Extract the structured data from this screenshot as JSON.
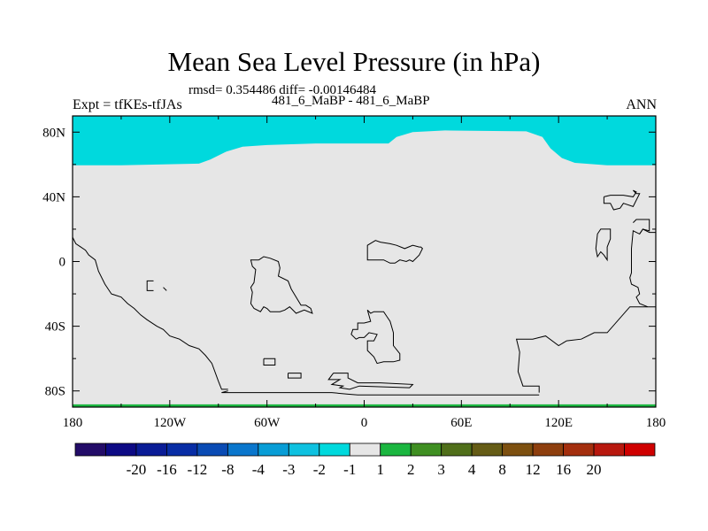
{
  "chart_data": {
    "type": "heatmap",
    "title": "Mean Sea Level Pressure (in hPa)",
    "stats": "rmsd= 0.354486 diff= -0.00146484",
    "subtitle": "481_6_MaBP - 481_6_MaBP",
    "left_label": "Expt = tfKEs-tfJAs",
    "right_label": "ANN",
    "xlim": [
      -180,
      180
    ],
    "ylim": [
      -90,
      90
    ],
    "x_ticks": [
      {
        "value": -180,
        "label": "180"
      },
      {
        "value": -120,
        "label": "120W"
      },
      {
        "value": -60,
        "label": "60W"
      },
      {
        "value": 0,
        "label": "0"
      },
      {
        "value": 60,
        "label": "60E"
      },
      {
        "value": 120,
        "label": "120E"
      },
      {
        "value": 180,
        "label": "180"
      }
    ],
    "y_ticks": [
      {
        "value": 80,
        "label": "80N"
      },
      {
        "value": 40,
        "label": "40N"
      },
      {
        "value": 0,
        "label": "0"
      },
      {
        "value": -40,
        "label": "40S"
      },
      {
        "value": -80,
        "label": "80S"
      }
    ],
    "background_level": "-1 to 1",
    "regions": [
      {
        "level": "-2 to -1",
        "color": "#00d9dd",
        "description": "northern high latitudes"
      },
      {
        "level": "1 to 2",
        "color": "#1bb640",
        "description": "southern edge strip"
      }
    ],
    "colorbar": {
      "colors": [
        "#230c68",
        "#0d0a84",
        "#0a1c96",
        "#082da5",
        "#0a4bb4",
        "#0a76cc",
        "#089dd6",
        "#0ec1e0",
        "#00d9dd",
        "#e6e6e6",
        "#1bb640",
        "#3f8f22",
        "#506f1a",
        "#655c16",
        "#7d5010",
        "#8e3f0e",
        "#a42f0e",
        "#b8180e",
        "#cf0000"
      ],
      "labels": [
        "-20",
        "-16",
        "-12",
        "-8",
        "-4",
        "-3",
        "-2",
        "-1",
        "1",
        "2",
        "3",
        "4",
        "8",
        "12",
        "16",
        "20"
      ]
    }
  }
}
